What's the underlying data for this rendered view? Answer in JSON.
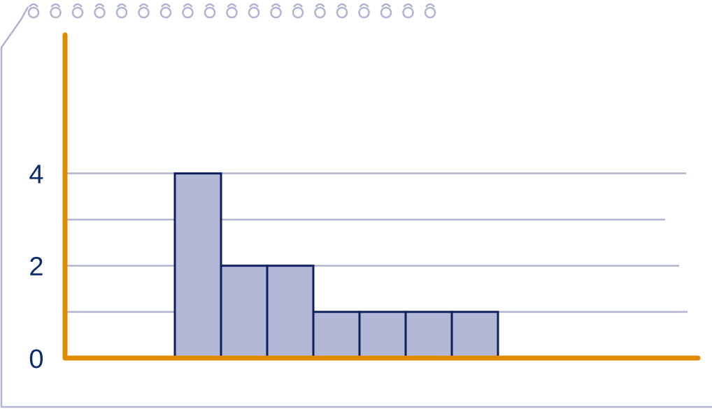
{
  "chart_data": {
    "type": "bar",
    "values": [
      4,
      2,
      2,
      1,
      1,
      1,
      1
    ],
    "color": "#b3b8d6",
    "edge_color": "#0d1f5c",
    "ylim": [
      0,
      7
    ],
    "yticks": [
      0,
      2,
      4
    ],
    "minor_yticks": [
      1,
      3
    ],
    "grid": true
  }
}
